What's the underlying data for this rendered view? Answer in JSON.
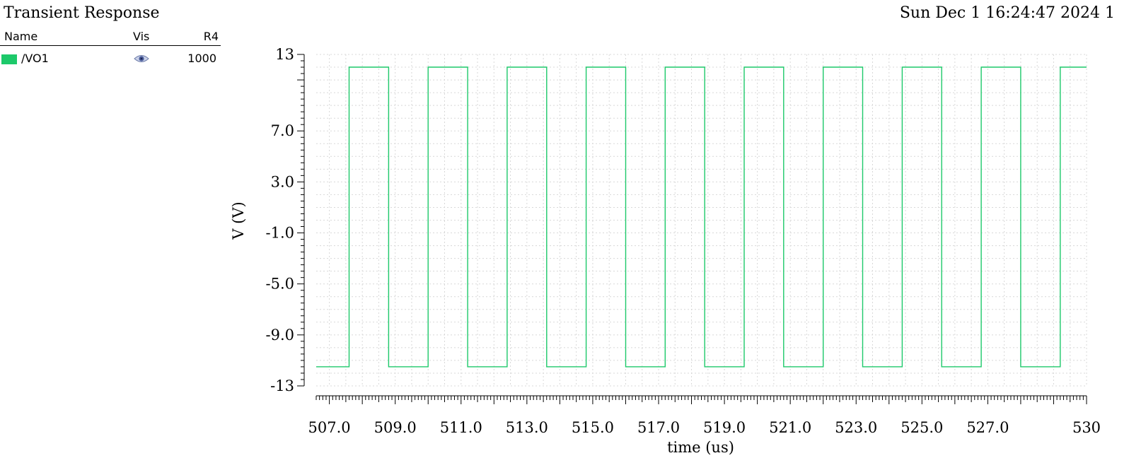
{
  "header": {
    "title": "Transient Response",
    "timestamp": "Sun Dec 1 16:24:47 2024 1"
  },
  "legend": {
    "columns": {
      "name": "Name",
      "vis": "Vis",
      "value": "R4"
    },
    "rows": [
      {
        "name": "/VO1",
        "color": "#1dc96a",
        "visible_icon": "eye-icon",
        "value": "1000"
      }
    ]
  },
  "chart_data": {
    "type": "line",
    "title": "",
    "xlabel": "time (us)",
    "ylabel": "V (V)",
    "xlim": [
      506.6,
      530.0
    ],
    "ylim": [
      -13,
      13
    ],
    "x_ticks": [
      507.0,
      509.0,
      511.0,
      513.0,
      515.0,
      517.0,
      519.0,
      521.0,
      523.0,
      525.0,
      527.0,
      530
    ],
    "x_tick_labels": [
      "507.0",
      "509.0",
      "511.0",
      "513.0",
      "515.0",
      "517.0",
      "519.0",
      "521.0",
      "523.0",
      "525.0",
      "527.0",
      "530"
    ],
    "y_ticks": [
      13,
      7.0,
      3.0,
      -1.0,
      -5.0,
      -9.0,
      -13
    ],
    "y_tick_labels": [
      "13",
      "7.0",
      "3.0",
      "-1.0",
      "-5.0",
      "-9.0",
      "-13"
    ],
    "grid": true,
    "series": [
      {
        "name": "/VO1",
        "color": "#1dc96a",
        "x": [
          506.6,
          507.6,
          507.6,
          508.8,
          508.8,
          510.0,
          510.0,
          511.2,
          511.2,
          512.4,
          512.4,
          513.6,
          513.6,
          514.8,
          514.8,
          516.0,
          516.0,
          517.2,
          517.2,
          518.4,
          518.4,
          519.6,
          519.6,
          520.8,
          520.8,
          522.0,
          522.0,
          523.2,
          523.2,
          524.4,
          524.4,
          525.6,
          525.6,
          526.8,
          526.8,
          528.0,
          528.0,
          529.2,
          529.2,
          530.0
        ],
        "y": [
          -11.5,
          -11.5,
          12.0,
          12.0,
          -11.5,
          -11.5,
          12.0,
          12.0,
          -11.5,
          -11.5,
          12.0,
          12.0,
          -11.5,
          -11.5,
          12.0,
          12.0,
          -11.5,
          -11.5,
          12.0,
          12.0,
          -11.5,
          -11.5,
          12.0,
          12.0,
          -11.5,
          -11.5,
          12.0,
          12.0,
          -11.5,
          -11.5,
          12.0,
          12.0,
          -11.5,
          -11.5,
          12.0,
          12.0,
          -11.5,
          -11.5,
          12.0,
          12.0
        ]
      }
    ]
  }
}
